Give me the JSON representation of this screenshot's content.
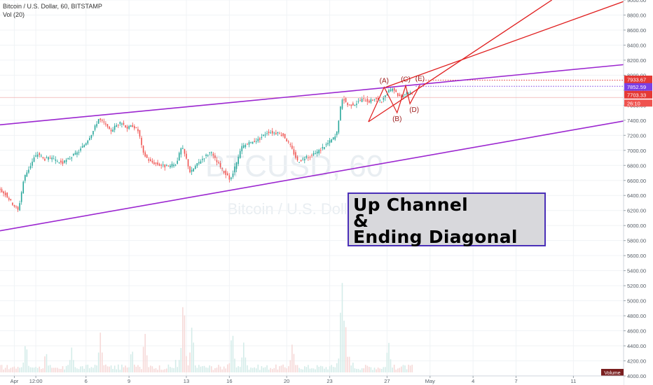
{
  "header": {
    "title": "Bitcoin / U.S. Dollar, 60, BITSTAMP",
    "indicator": "Vol (20)"
  },
  "watermark": {
    "symbol": "BTCUSD, 60",
    "name": "Bitcoin / U.S. Dollar"
  },
  "annotation": {
    "line1": "Up Channel",
    "line2": "&",
    "line3": "Ending Diagonal"
  },
  "colors": {
    "up_candle": "#26a69a",
    "down_candle": "#ef5350",
    "channel": "#9c27d0",
    "diagonal": "#e02020",
    "last_price": "#e53935",
    "level_price": "#7b3fe4",
    "box_border": "#4a2fb8",
    "box_fill": "#d8d8dc"
  },
  "chart_data": {
    "type": "candlestick",
    "symbol": "BTCUSD",
    "interval": "60",
    "exchange": "BITSTAMP",
    "ylim": [
      4000,
      9000
    ],
    "y_ticks": [
      4000,
      4200,
      4400,
      4600,
      4800,
      5000,
      5200,
      5400,
      5600,
      5800,
      6000,
      6200,
      6400,
      6600,
      6800,
      7000,
      7200,
      7400,
      7600,
      7800,
      8000,
      8200,
      8400,
      8600,
      8800,
      9000
    ],
    "y_tick_labels": [
      "4000.00",
      "4200.00",
      "4400.00",
      "4600.00",
      "4800.00",
      "5000.00",
      "5200.00",
      "5400.00",
      "5600.00",
      "5800.00",
      "6000.00",
      "6200.00",
      "6400.00",
      "6600.00",
      "6800.00",
      "7000.00",
      "7200.00",
      "7400.00",
      "7600.00",
      "7800.00",
      "8000.00",
      "8200.00",
      "8400.00",
      "8600.00",
      "8800.00",
      "9000.00"
    ],
    "x_range_days": [
      0,
      43.5
    ],
    "x_ticks": [
      {
        "day": 1.0,
        "label": "Apr"
      },
      {
        "day": 2.5,
        "label": "12:00"
      },
      {
        "day": 6.0,
        "label": "6"
      },
      {
        "day": 9.0,
        "label": "9"
      },
      {
        "day": 13.0,
        "label": "13"
      },
      {
        "day": 16.0,
        "label": "16"
      },
      {
        "day": 20.0,
        "label": "20"
      },
      {
        "day": 23.0,
        "label": "23"
      },
      {
        "day": 27.0,
        "label": "27"
      },
      {
        "day": 30.0,
        "label": "May"
      },
      {
        "day": 33.0,
        "label": "4"
      },
      {
        "day": 36.0,
        "label": "7"
      },
      {
        "day": 40.0,
        "label": "11"
      }
    ],
    "price_path": [
      {
        "day": 0.0,
        "price": 6480
      },
      {
        "day": 0.5,
        "price": 6420
      },
      {
        "day": 1.0,
        "price": 6290
      },
      {
        "day": 1.4,
        "price": 6200
      },
      {
        "day": 1.8,
        "price": 6640
      },
      {
        "day": 2.2,
        "price": 6780
      },
      {
        "day": 2.5,
        "price": 6900
      },
      {
        "day": 2.8,
        "price": 6960
      },
      {
        "day": 3.2,
        "price": 6880
      },
      {
        "day": 3.6,
        "price": 6900
      },
      {
        "day": 4.0,
        "price": 6860
      },
      {
        "day": 4.5,
        "price": 6830
      },
      {
        "day": 5.0,
        "price": 6900
      },
      {
        "day": 5.6,
        "price": 6980
      },
      {
        "day": 6.1,
        "price": 7100
      },
      {
        "day": 6.6,
        "price": 7250
      },
      {
        "day": 7.0,
        "price": 7420
      },
      {
        "day": 7.4,
        "price": 7360
      },
      {
        "day": 7.8,
        "price": 7250
      },
      {
        "day": 8.2,
        "price": 7330
      },
      {
        "day": 8.6,
        "price": 7370
      },
      {
        "day": 9.0,
        "price": 7300
      },
      {
        "day": 9.4,
        "price": 7330
      },
      {
        "day": 9.8,
        "price": 7250
      },
      {
        "day": 10.1,
        "price": 6960
      },
      {
        "day": 10.6,
        "price": 6850
      },
      {
        "day": 11.2,
        "price": 6810
      },
      {
        "day": 11.8,
        "price": 6780
      },
      {
        "day": 12.4,
        "price": 6820
      },
      {
        "day": 12.8,
        "price": 7050
      },
      {
        "day": 13.1,
        "price": 6900
      },
      {
        "day": 13.4,
        "price": 6700
      },
      {
        "day": 13.8,
        "price": 6800
      },
      {
        "day": 14.3,
        "price": 6900
      },
      {
        "day": 14.8,
        "price": 6980
      },
      {
        "day": 15.3,
        "price": 6830
      },
      {
        "day": 15.8,
        "price": 6700
      },
      {
        "day": 16.2,
        "price": 6600
      },
      {
        "day": 16.6,
        "price": 6820
      },
      {
        "day": 17.0,
        "price": 7050
      },
      {
        "day": 17.6,
        "price": 7100
      },
      {
        "day": 18.2,
        "price": 7150
      },
      {
        "day": 18.8,
        "price": 7250
      },
      {
        "day": 19.4,
        "price": 7230
      },
      {
        "day": 19.9,
        "price": 7200
      },
      {
        "day": 20.4,
        "price": 7050
      },
      {
        "day": 20.9,
        "price": 6850
      },
      {
        "day": 21.4,
        "price": 6900
      },
      {
        "day": 21.9,
        "price": 6930
      },
      {
        "day": 22.4,
        "price": 7000
      },
      {
        "day": 22.9,
        "price": 7080
      },
      {
        "day": 23.3,
        "price": 7150
      },
      {
        "day": 23.6,
        "price": 7200
      },
      {
        "day": 23.85,
        "price": 7550
      },
      {
        "day": 24.05,
        "price": 7700
      },
      {
        "day": 24.4,
        "price": 7600
      },
      {
        "day": 24.9,
        "price": 7620
      },
      {
        "day": 25.4,
        "price": 7680
      },
      {
        "day": 25.9,
        "price": 7650
      },
      {
        "day": 26.3,
        "price": 7700
      },
      {
        "day": 26.7,
        "price": 7640
      },
      {
        "day": 27.1,
        "price": 7750
      },
      {
        "day": 27.5,
        "price": 7840
      },
      {
        "day": 27.9,
        "price": 7730
      },
      {
        "day": 28.2,
        "price": 7720
      },
      {
        "day": 28.5,
        "price": 7780
      },
      {
        "day": 28.8,
        "price": 7770
      }
    ],
    "volume_ylim": [
      0,
      1000
    ],
    "volume_spikes": [
      {
        "day": 1.8,
        "volume": 330
      },
      {
        "day": 3.2,
        "volume": 230
      },
      {
        "day": 5.0,
        "volume": 250
      },
      {
        "day": 7.0,
        "volume": 400
      },
      {
        "day": 9.2,
        "volume": 260
      },
      {
        "day": 10.1,
        "volume": 430
      },
      {
        "day": 12.8,
        "volume": 820
      },
      {
        "day": 13.4,
        "volume": 500
      },
      {
        "day": 16.2,
        "volume": 460
      },
      {
        "day": 17.0,
        "volume": 300
      },
      {
        "day": 20.4,
        "volume": 310
      },
      {
        "day": 23.85,
        "volume": 1000
      },
      {
        "day": 24.05,
        "volume": 650
      },
      {
        "day": 27.1,
        "volume": 330
      }
    ],
    "channel_upper": [
      {
        "day": 0.0,
        "price": 7340
      },
      {
        "day": 43.5,
        "price": 8140
      }
    ],
    "channel_lower": [
      {
        "day": 0.0,
        "price": 5930
      },
      {
        "day": 43.5,
        "price": 7390
      }
    ],
    "diagonal_upper": [
      {
        "day": 26.9,
        "price": 7840
      },
      {
        "day": 43.5,
        "price": 8980
      }
    ],
    "diagonal_lower": [
      {
        "day": 25.7,
        "price": 7380
      },
      {
        "day": 38.5,
        "price": 9000
      }
    ],
    "wave_path": [
      {
        "day": 25.7,
        "price": 7380,
        "label": ""
      },
      {
        "day": 26.8,
        "price": 7840,
        "label": "(A)"
      },
      {
        "day": 27.7,
        "price": 7500,
        "label": "(B)"
      },
      {
        "day": 28.3,
        "price": 7860,
        "label": "(C)"
      },
      {
        "day": 28.6,
        "price": 7620,
        "label": "(D)"
      },
      {
        "day": 29.3,
        "price": 7870,
        "label": "(E)"
      }
    ],
    "price_levels": [
      {
        "price": 7933.67,
        "label": "7933.67",
        "kind": "last"
      },
      {
        "price": 7852.59,
        "label": "7852.59",
        "kind": "level"
      },
      {
        "price": 7703.33,
        "label": "7703.33",
        "kind": "current"
      }
    ],
    "countdown_label": "26:10",
    "volume_label": "Volume"
  }
}
